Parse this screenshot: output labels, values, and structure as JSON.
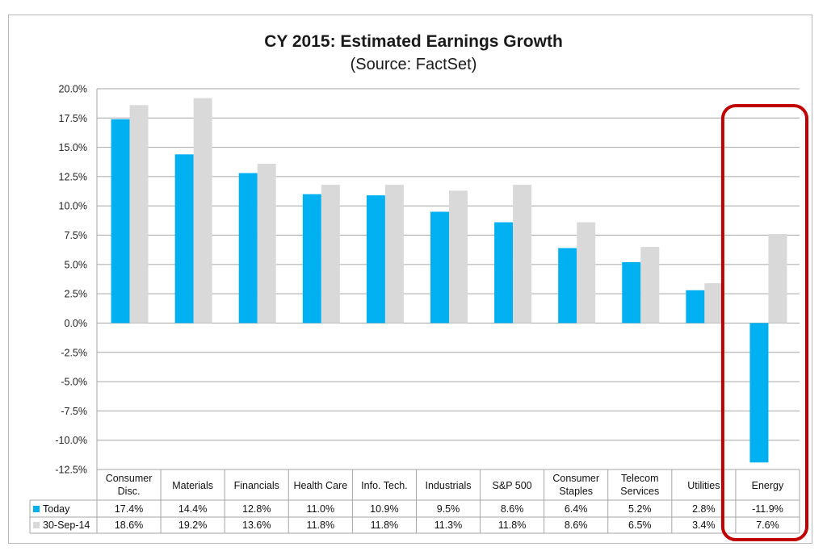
{
  "chart_data": {
    "type": "bar",
    "title": "CY 2015: Estimated Earnings Growth",
    "subtitle": "(Source: FactSet)",
    "categories": [
      [
        "Consumer",
        "Disc."
      ],
      [
        "Materials"
      ],
      [
        "Financials"
      ],
      [
        "Health Care"
      ],
      [
        "Info. Tech."
      ],
      [
        "Industrials"
      ],
      [
        "S&P 500"
      ],
      [
        "Consumer",
        "Staples"
      ],
      [
        "Telecom",
        "Services"
      ],
      [
        "Utilities"
      ],
      [
        "Energy"
      ]
    ],
    "series": [
      {
        "name": "Today",
        "color": "#00b0f0",
        "values": [
          17.4,
          14.4,
          12.8,
          11.0,
          10.9,
          9.5,
          8.6,
          6.4,
          5.2,
          2.8,
          -11.9
        ],
        "labels": [
          "17.4%",
          "14.4%",
          "12.8%",
          "11.0%",
          "10.9%",
          "9.5%",
          "8.6%",
          "6.4%",
          "5.2%",
          "2.8%",
          "-11.9%"
        ]
      },
      {
        "name": "30-Sep-14",
        "color": "#d9d9d9",
        "values": [
          18.6,
          19.2,
          13.6,
          11.8,
          11.8,
          11.3,
          11.8,
          8.6,
          6.5,
          3.4,
          7.6
        ],
        "labels": [
          "18.6%",
          "19.2%",
          "13.6%",
          "11.8%",
          "11.8%",
          "11.3%",
          "11.8%",
          "8.6%",
          "6.5%",
          "3.4%",
          "7.6%"
        ]
      }
    ],
    "ylim": [
      -12.5,
      20.0
    ],
    "y_ticks": [
      "20.0%",
      "17.5%",
      "15.0%",
      "12.5%",
      "10.0%",
      "7.5%",
      "5.0%",
      "2.5%",
      "0.0%",
      "-2.5%",
      "-5.0%",
      "-7.5%",
      "-10.0%",
      "-12.5%"
    ],
    "y_tick_values": [
      20.0,
      17.5,
      15.0,
      12.5,
      10.0,
      7.5,
      5.0,
      2.5,
      0.0,
      -2.5,
      -5.0,
      -7.5,
      -10.0,
      -12.5
    ],
    "grid": true,
    "legend": "data-table",
    "xlabel": "",
    "ylabel": "",
    "highlight": {
      "category": "Energy",
      "color": "#c00000"
    }
  }
}
